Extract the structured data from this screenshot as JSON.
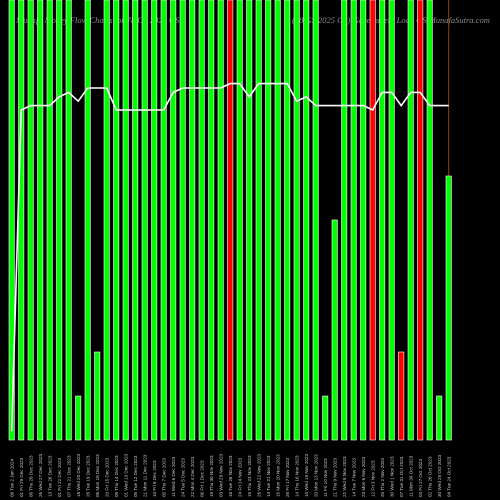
{
  "header": {
    "left_text": "Munafa Money Flow Charts for 78 GS 2025 GS",
    "right_text": "(78 GS 2025 GS) Government Loan GS MunafaSutra.com"
  },
  "colors": {
    "background": "#000000",
    "bar_up": "#00ff00",
    "bar_down": "#ff0000",
    "bar_border": "#ffffff",
    "line": "#ffffff",
    "vline": "#8b4513",
    "label": "#cccccc"
  },
  "chart_data": {
    "type": "bar",
    "title": "",
    "x": [
      "08 Tue 2 Jan 2024",
      "01 Fri 29 Dec 2023",
      "06 Thu 28 Dec 2023",
      "26 Wed 27 Dec 2023",
      "13 Tue 26 Dec 2023",
      "01 Fri 22 Dec 2023",
      "07 Thu 21 Dec 2023",
      "18 Wed 20 Dec 2023",
      "26 Tue 19 Dec 2023",
      "06 Mon 18 Dec 2023",
      "20 Fri 15 Dec 2023",
      "05 Thu 14 Dec 2023",
      "01 Wed 13 Dec 2023",
      "05 Tue 12 Dec 2023",
      "21 Mon 11 Dec 2023",
      "10 Fri 8 Dec 2023",
      "05 Thu 7 Dec 2023",
      "11 Wed 6 Dec 2023",
      "24 Tue 5 Dec 2023",
      "22 Mon 4 Dec 2023",
      "06 Fri 1 Dec 2023",
      "15 Thu 30 Nov 2023",
      "03 Wed 29 Nov 2023",
      "16 Tue 28 Nov 2023",
      "24 Fri 24 Nov 2023",
      "15 Thu 23 Nov 2023",
      "26 Wed 22 Nov 2023",
      "14 Tue 21 Nov 2023",
      "15 Mon 20 Nov 2023",
      "26 Fri 17 Nov 2023",
      "14 Thu 16 Nov 2023",
      "10 Wed 15 Nov 2023",
      "20 Mon 13 Nov 2023",
      "11 Fri 10 Nov 2023",
      "21 Thu 9 Nov 2023",
      "22 Wed 8 Nov 2023",
      "14 Tue 7 Nov 2023",
      "23 Mon 6 Nov 2023",
      "12 Fri 3 Nov 2023",
      "25 Thu 2 Nov 2023",
      "30 Wed 1 Nov 2023",
      "07 Tue 31 Oct 2023",
      "11 Mon 30 Oct 2023",
      "04 Fri 27 Oct 2023",
      "02 Thu 26 Oct 2023",
      "30 Wed 25 Oct 2023",
      "04 Tue 24 Oct 2023"
    ],
    "series": [
      {
        "role": "money flow bars",
        "values": [
          100,
          100,
          100,
          100,
          100,
          100,
          100,
          10,
          100,
          20,
          100,
          100,
          100,
          100,
          100,
          100,
          100,
          100,
          100,
          100,
          100,
          100,
          100,
          100,
          100,
          100,
          100,
          100,
          100,
          100,
          100,
          100,
          100,
          10,
          50,
          100,
          100,
          100,
          100,
          100,
          100,
          20,
          100,
          100,
          100,
          10,
          60
        ],
        "direction": [
          "up",
          "up",
          "up",
          "up",
          "up",
          "up",
          "up",
          "up",
          "up",
          "up",
          "up",
          "up",
          "up",
          "up",
          "up",
          "up",
          "up",
          "up",
          "up",
          "up",
          "up",
          "up",
          "up",
          "down",
          "up",
          "up",
          "up",
          "up",
          "up",
          "up",
          "up",
          "up",
          "up",
          "up",
          "up",
          "up",
          "up",
          "up",
          "down",
          "up",
          "up",
          "down",
          "up",
          "down",
          "up",
          "up",
          "up"
        ]
      },
      {
        "role": "price line",
        "values": [
          2,
          75,
          76,
          76,
          76,
          78,
          79,
          77,
          80,
          80,
          80,
          75,
          75,
          75,
          75,
          75,
          75,
          79,
          80,
          80,
          80,
          80,
          80,
          81,
          81,
          78,
          81,
          81,
          81,
          81,
          77,
          78,
          76,
          76,
          76,
          76,
          76,
          76,
          75,
          79,
          79,
          76,
          79,
          79,
          76,
          76,
          76
        ]
      }
    ],
    "ylim": [
      0,
      100
    ],
    "vlines_at_index": [
      0,
      46
    ],
    "grid": false,
    "legend": "none"
  }
}
